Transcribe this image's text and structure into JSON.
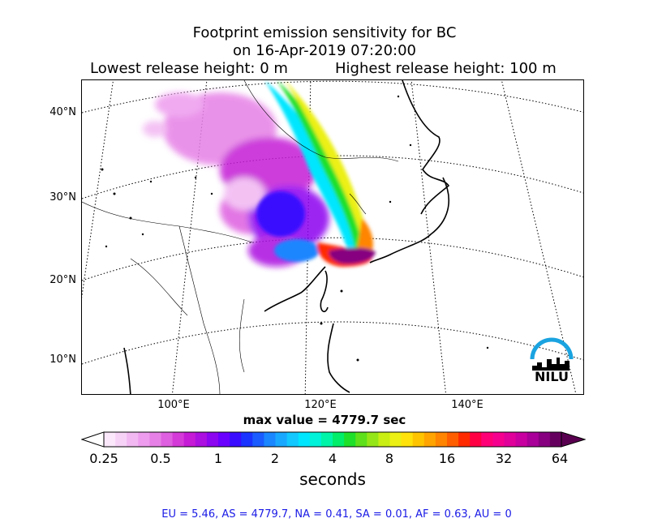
{
  "title": {
    "line1": "Footprint emission sensitivity for BC",
    "line2": "on 16-Apr-2019 07:20:00",
    "lowest": "Lowest release height: 0 m",
    "highest": "Highest release height: 100 m"
  },
  "axes": {
    "lat_labels": [
      "40°N",
      "30°N",
      "20°N",
      "10°N"
    ],
    "lon_labels": [
      "100°E",
      "120°E",
      "140°E"
    ]
  },
  "max_value": "max value = 4779.7 sec",
  "colorbar": {
    "ticks": [
      "0.25",
      "0.5",
      "1",
      "2",
      "4",
      "8",
      "16",
      "32",
      "64"
    ],
    "unit": "seconds",
    "colors": [
      "#fbe8fb",
      "#f7d2f7",
      "#f2b8f2",
      "#ee9cee",
      "#e680e6",
      "#de5fe0",
      "#d43ad8",
      "#c51ad6",
      "#ab10e0",
      "#8c06f0",
      "#6a00ff",
      "#3a0cff",
      "#1a33ff",
      "#1a5cff",
      "#1a86ff",
      "#19a8ff",
      "#12c8ff",
      "#00e6ff",
      "#00f2d9",
      "#00f5a8",
      "#00ee6a",
      "#1ee02a",
      "#5ee01a",
      "#95e617",
      "#c8ee14",
      "#ecf014",
      "#ffe20a",
      "#ffc400",
      "#ffa400",
      "#ff8400",
      "#ff5e00",
      "#ff2a00",
      "#ff0044",
      "#ff0077",
      "#f5008e",
      "#e0009a",
      "#c8009f",
      "#a80098",
      "#860080",
      "#66005e"
    ],
    "low_arrow": "#ffffff",
    "high_arrow": "#5a0050"
  },
  "stats_text": "EU = 5.46,  AS = 4779.7,  NA = 0.41,  SA = 0.01,  AF = 0.63,  AU = 0",
  "logo": {
    "text": "NILU",
    "arc_color": "#1aa3e0"
  }
}
